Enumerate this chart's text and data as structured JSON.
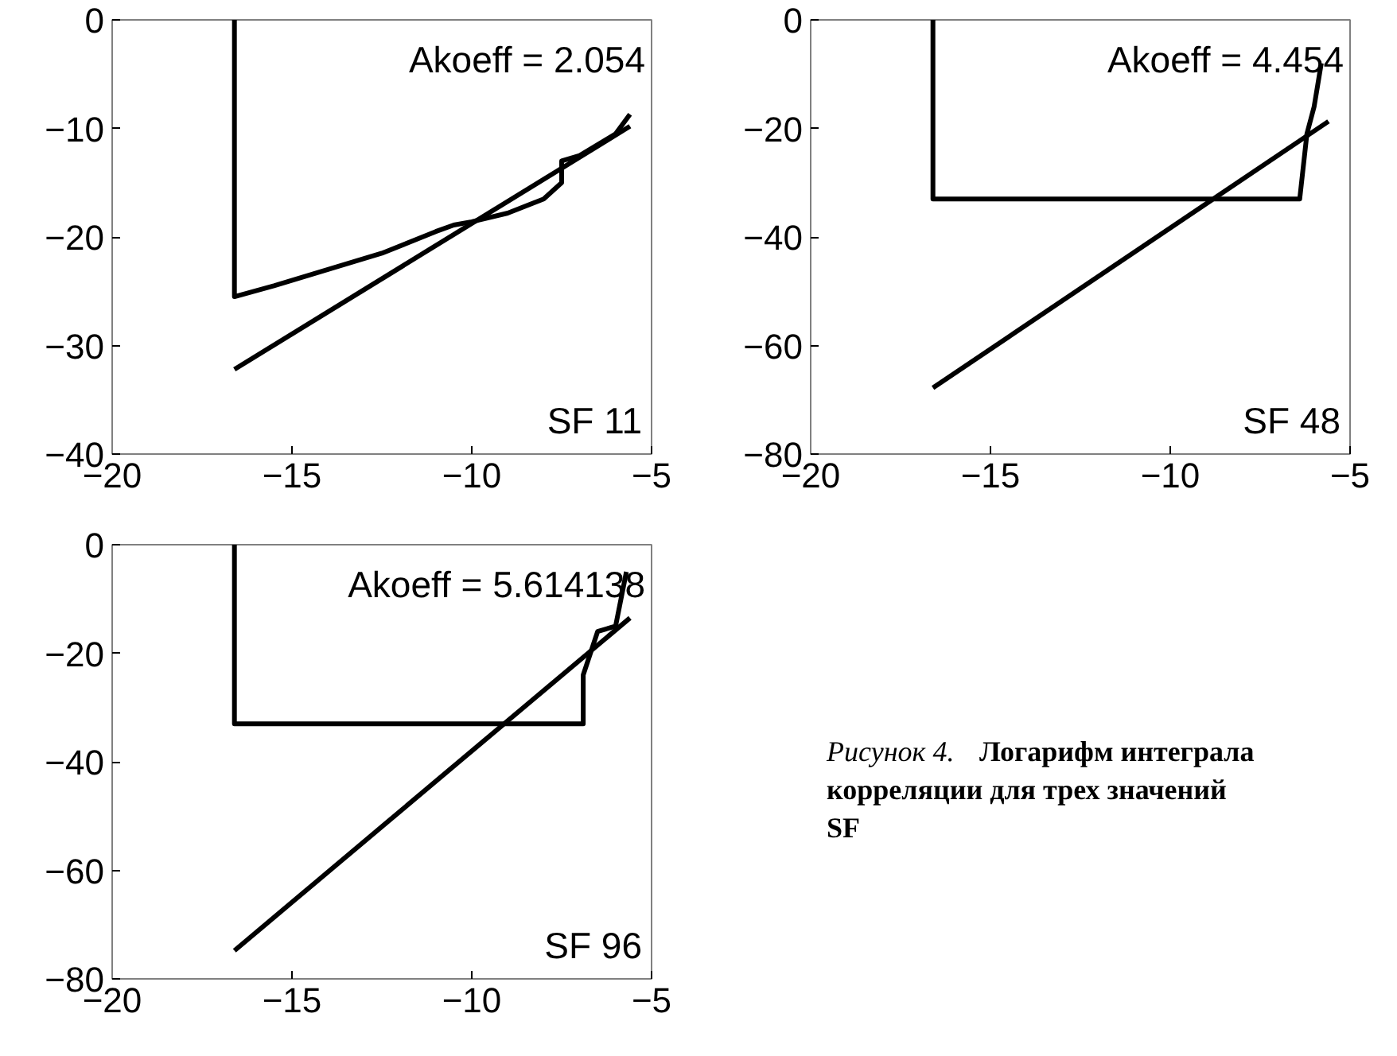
{
  "chart_data": [
    {
      "type": "line",
      "xlim": [
        -20,
        -5
      ],
      "ylim": [
        -40,
        0
      ],
      "xticks": [
        -20,
        -15,
        -10,
        -5
      ],
      "yticks": [
        -40,
        -30,
        -20,
        -10,
        0
      ],
      "grid": false,
      "series": [
        {
          "color": "#000000",
          "x": [
            -16.6,
            -16.6,
            -15.5,
            -14,
            -12.5,
            -11,
            -10.5,
            -10,
            -9,
            -8,
            -7.5,
            -7.5,
            -7,
            -6,
            -5.6
          ],
          "values": [
            0,
            -25.5,
            -24.5,
            -23,
            -21.5,
            -19.5,
            -18.9,
            -18.6,
            -17.8,
            -16.5,
            -15,
            -13,
            -12.5,
            -10.5,
            -8.7
          ]
        },
        {
          "color": "#000000",
          "x": [
            -16.6,
            -5.6
          ],
          "values": [
            -32.2,
            -9.8
          ]
        }
      ],
      "annotations": [
        "Akoeff = 2.054",
        "SF 11"
      ]
    },
    {
      "type": "line",
      "xlim": [
        -20,
        -5
      ],
      "ylim": [
        -80,
        0
      ],
      "xticks": [
        -20,
        -15,
        -10,
        -5
      ],
      "yticks": [
        -80,
        -60,
        -40,
        -20,
        0
      ],
      "grid": false,
      "series": [
        {
          "color": "#000000",
          "x": [
            -16.6,
            -16.6,
            -6.4,
            -6.2,
            -6.0,
            -5.9,
            -5.8
          ],
          "values": [
            0,
            -33,
            -33,
            -21,
            -16,
            -12,
            -8
          ]
        },
        {
          "color": "#000000",
          "x": [
            -16.6,
            -5.6
          ],
          "values": [
            -67.8,
            -18.7
          ]
        }
      ],
      "annotations": [
        "Akoeff = 4.454",
        "SF 48"
      ]
    },
    {
      "type": "line",
      "xlim": [
        -20,
        -5
      ],
      "ylim": [
        -80,
        0
      ],
      "xticks": [
        -20,
        -15,
        -10,
        -5
      ],
      "yticks": [
        -80,
        -60,
        -40,
        -20,
        0
      ],
      "grid": false,
      "series": [
        {
          "color": "#000000",
          "x": [
            -16.6,
            -16.6,
            -6.9,
            -6.9,
            -6.5,
            -6.0,
            -5.7
          ],
          "values": [
            0,
            -33,
            -33,
            -24,
            -16,
            -15,
            -5
          ]
        },
        {
          "color": "#000000",
          "x": [
            -16.6,
            -5.6
          ],
          "values": [
            -74.8,
            -13.5
          ]
        }
      ],
      "annotations": [
        "Akoeff = 5.614138",
        "SF 96"
      ]
    },
    {
      "type": "other",
      "annotations": [
        "Рисунок 4.",
        "Логарифм интеграла корреляции для трех значений SF"
      ]
    }
  ]
}
